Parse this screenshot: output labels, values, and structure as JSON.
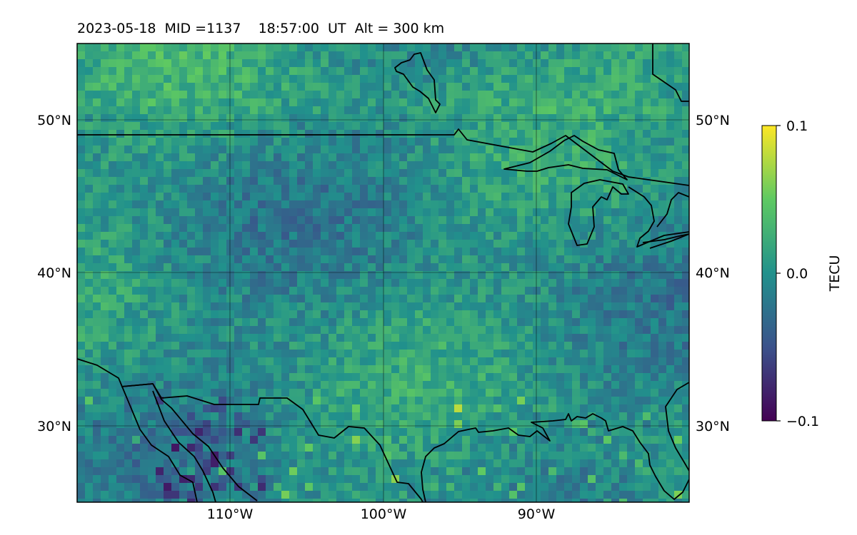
{
  "map": {
    "title": "2023-05-18  MID =1137    18:57:00  UT  Alt = 300 km",
    "extent": {
      "lon": [
        -120,
        -80
      ],
      "lat": [
        25,
        55
      ]
    },
    "latitude_labels": [
      "50°N",
      "40°N",
      "30°N"
    ],
    "longitude_labels": [
      "110°W",
      "100°W",
      "90°W"
    ],
    "gridlines": true,
    "features": [
      "coastlines",
      "country borders",
      "great lakes"
    ]
  },
  "colorbar": {
    "label": "TECU",
    "colormap": "viridis",
    "range": [
      -0.1,
      0.1
    ],
    "tick_labels": [
      "0.1",
      "0.0",
      "−0.1"
    ],
    "colors": [
      "#440154",
      "#3b528b",
      "#21918c",
      "#5ec962",
      "#fde725"
    ]
  }
}
